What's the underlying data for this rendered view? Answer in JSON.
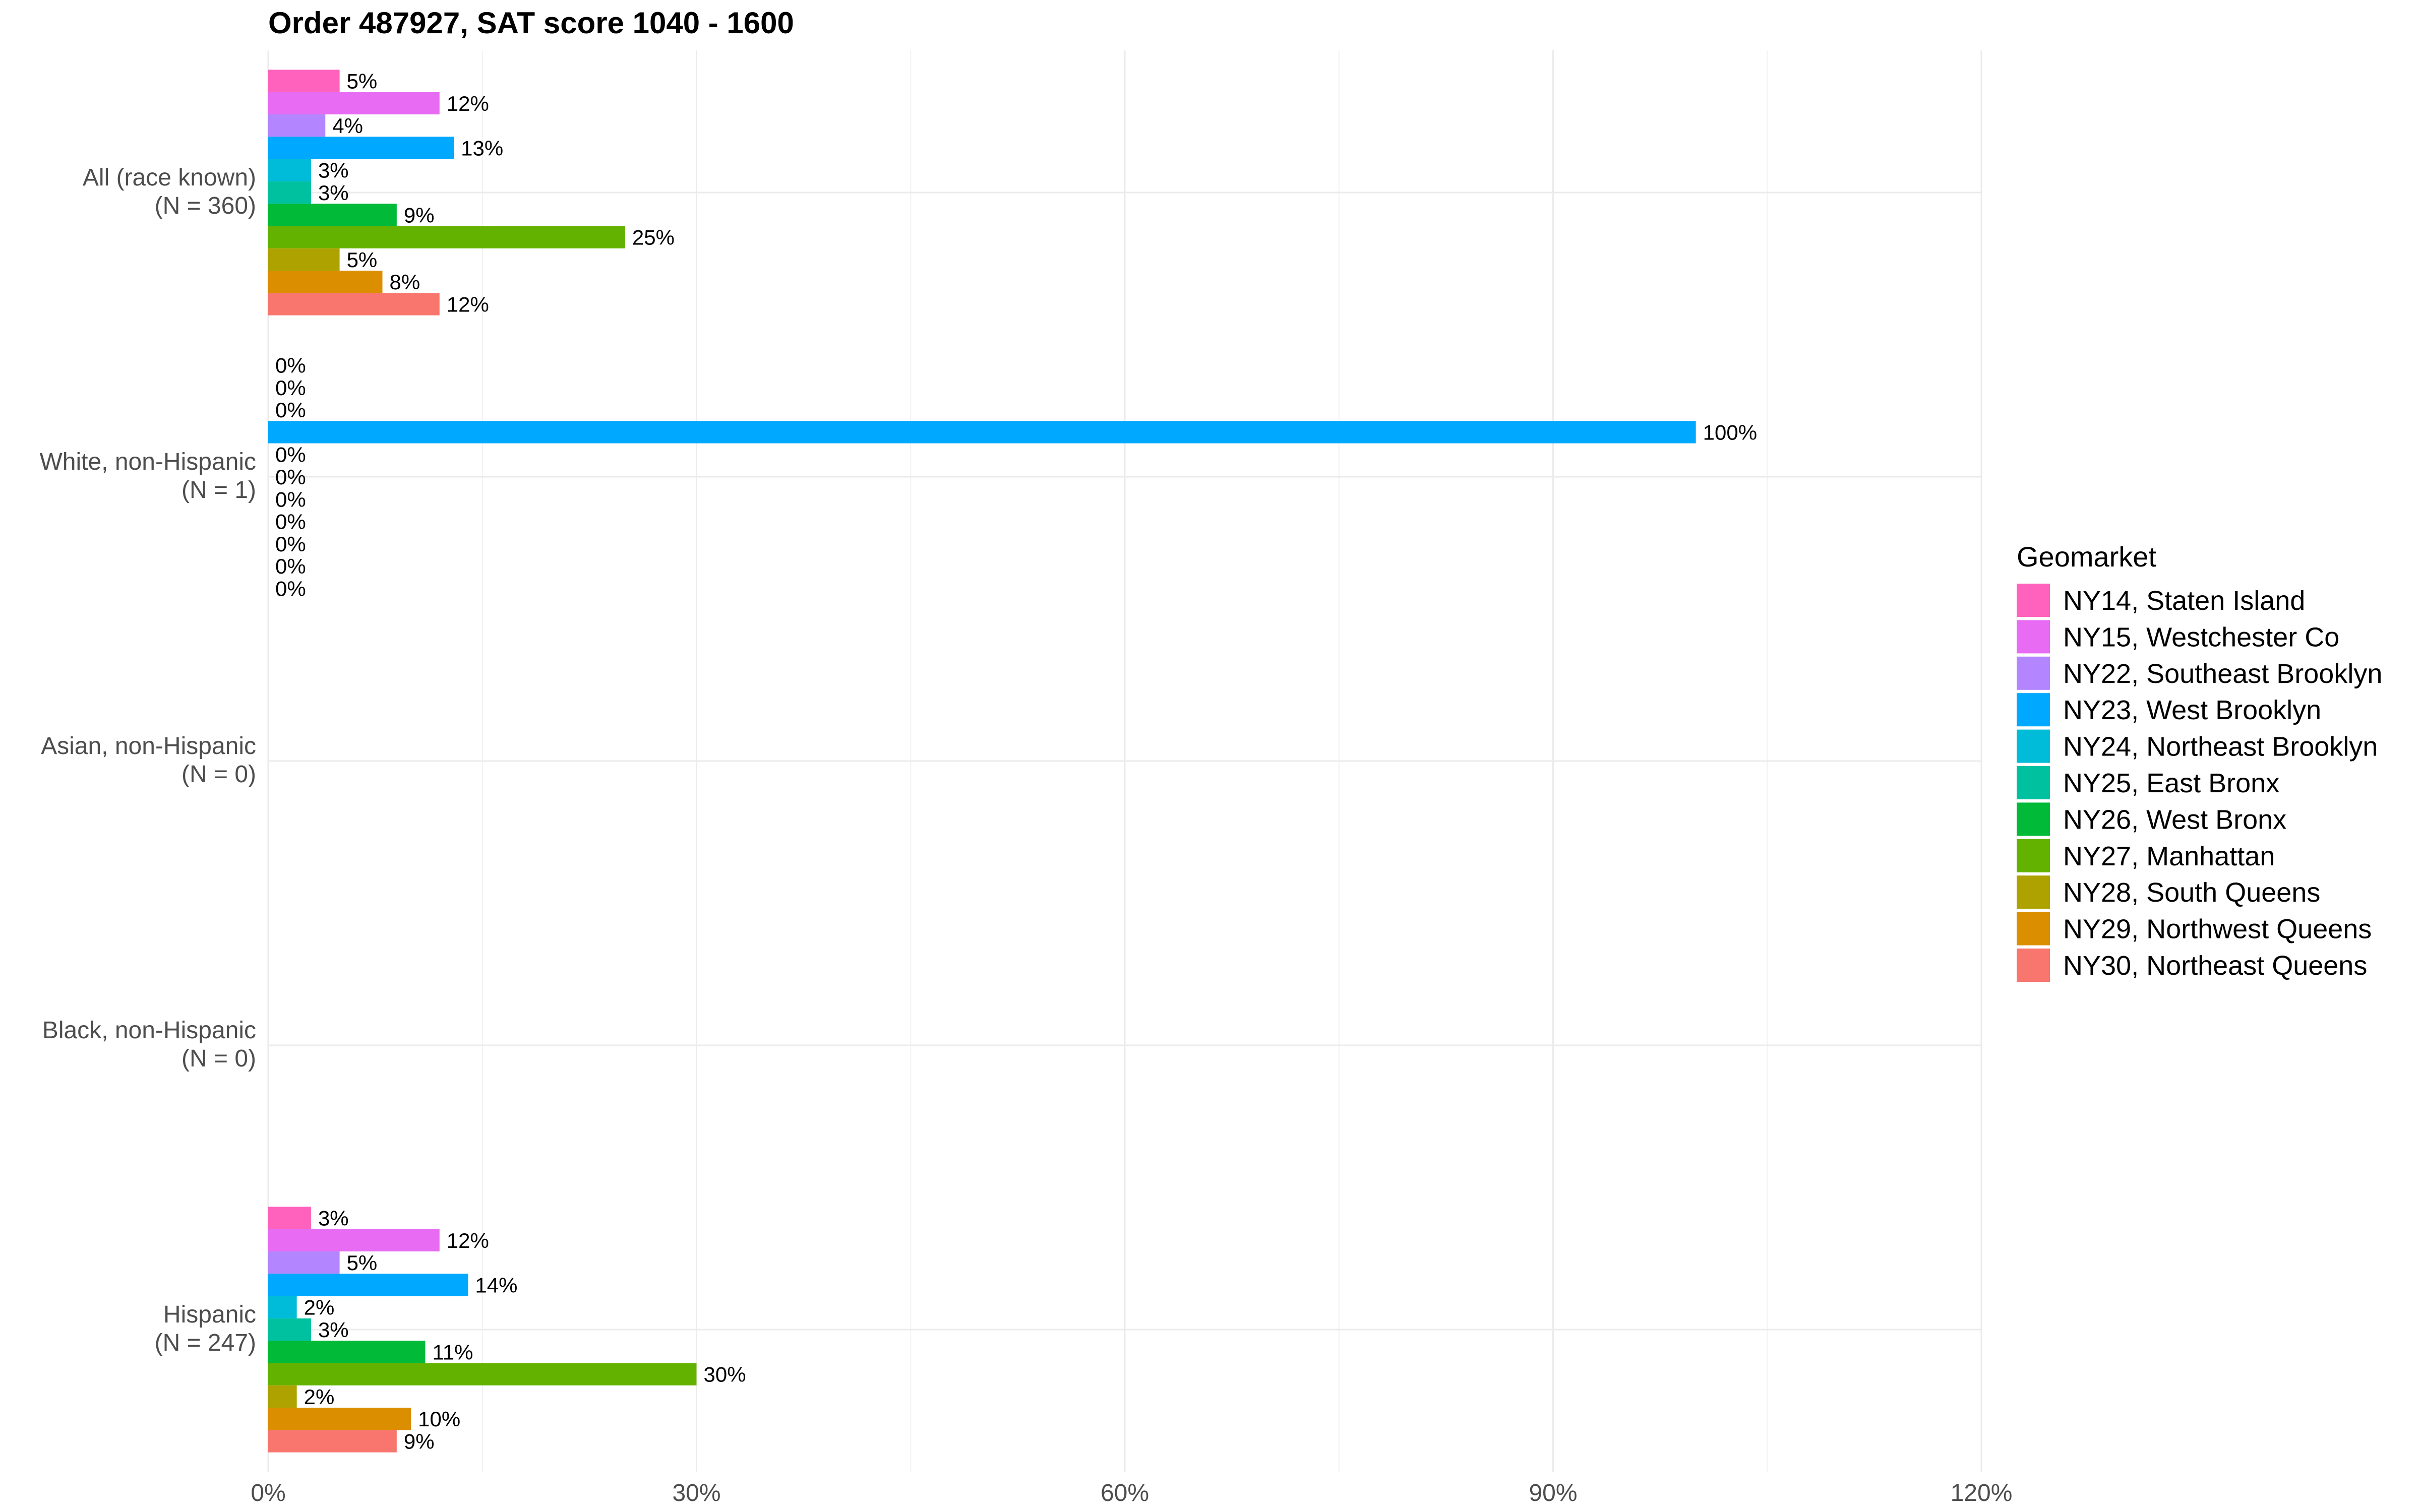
{
  "chart_data": {
    "type": "bar",
    "orientation": "horizontal",
    "title": "Order 487927, SAT score 1040 - 1600",
    "xlabel": "",
    "ylabel": "",
    "xlim": [
      0,
      120
    ],
    "x_ticks": [
      0,
      30,
      60,
      90,
      120
    ],
    "x_tick_labels": [
      "0%",
      "30%",
      "60%",
      "90%",
      "120%"
    ],
    "grid": true,
    "legend_placement": "right",
    "legend_title": "Geomarket",
    "categories": [
      "All (race known)\n(N = 360)",
      "White, non-Hispanic\n(N = 1)",
      "Asian, non-Hispanic\n(N = 0)",
      "Black, non-Hispanic\n(N = 0)",
      "Hispanic\n(N = 247)"
    ],
    "series": [
      {
        "name": "NY14, Staten Island",
        "color": "#FF62BC",
        "values": [
          5,
          0,
          null,
          null,
          3
        ],
        "labels": [
          "5%",
          "0%",
          null,
          null,
          "3%"
        ]
      },
      {
        "name": "NY15, Westchester Co",
        "color": "#E76BF3",
        "values": [
          12,
          0,
          null,
          null,
          12
        ],
        "labels": [
          "12%",
          "0%",
          null,
          null,
          "12%"
        ]
      },
      {
        "name": "NY22, Southeast Brooklyn",
        "color": "#B385FF",
        "values": [
          4,
          0,
          null,
          null,
          5
        ],
        "labels": [
          "4%",
          "0%",
          null,
          null,
          "5%"
        ]
      },
      {
        "name": "NY23, West Brooklyn",
        "color": "#00A9FF",
        "values": [
          13,
          100,
          null,
          null,
          14
        ],
        "labels": [
          "13%",
          "100%",
          null,
          null,
          "14%"
        ]
      },
      {
        "name": "NY24, Northeast Brooklyn",
        "color": "#00BCD8",
        "values": [
          3,
          0,
          null,
          null,
          2
        ],
        "labels": [
          "3%",
          "0%",
          null,
          null,
          "2%"
        ]
      },
      {
        "name": "NY25, East Bronx",
        "color": "#00C19F",
        "values": [
          3,
          0,
          null,
          null,
          3
        ],
        "labels": [
          "3%",
          "0%",
          null,
          null,
          "3%"
        ]
      },
      {
        "name": "NY26, West Bronx",
        "color": "#00BA38",
        "values": [
          9,
          0,
          null,
          null,
          11
        ],
        "labels": [
          "9%",
          "0%",
          null,
          null,
          "11%"
        ]
      },
      {
        "name": "NY27, Manhattan",
        "color": "#64B200",
        "values": [
          25,
          0,
          null,
          null,
          30
        ],
        "labels": [
          "25%",
          "0%",
          null,
          null,
          "30%"
        ]
      },
      {
        "name": "NY28, South Queens",
        "color": "#AEA200",
        "values": [
          5,
          0,
          null,
          null,
          2
        ],
        "labels": [
          "5%",
          "0%",
          null,
          null,
          "2%"
        ]
      },
      {
        "name": "NY29, Northwest Queens",
        "color": "#DB8E00",
        "values": [
          8,
          0,
          null,
          null,
          10
        ],
        "labels": [
          "8%",
          "0%",
          null,
          null,
          "10%"
        ]
      },
      {
        "name": "NY30, Northeast Queens",
        "color": "#F8766D",
        "values": [
          12,
          0,
          null,
          null,
          9
        ],
        "labels": [
          "12%",
          "0%",
          null,
          null,
          "9%"
        ]
      }
    ]
  }
}
